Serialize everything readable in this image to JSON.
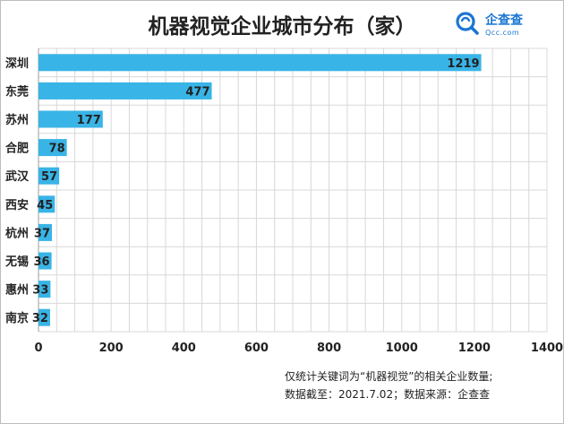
{
  "title": "机器视觉企业城市分布（家）",
  "logo": {
    "name": "企查查",
    "domain": "Qcc.com",
    "icon": "qcc-magnifier-icon"
  },
  "colors": {
    "bar": "#39b4e6",
    "grid": "#d8d8d8",
    "text": "#222222",
    "brand": "#1b76d2"
  },
  "chart_data": {
    "type": "bar",
    "orientation": "horizontal",
    "title": "机器视觉企业城市分布（家）",
    "categories": [
      "深圳",
      "东莞",
      "苏州",
      "合肥",
      "武汉",
      "西安",
      "杭州",
      "无锡",
      "惠州",
      "南京"
    ],
    "values": [
      1219,
      477,
      177,
      78,
      57,
      45,
      37,
      36,
      33,
      32
    ],
    "xlim": [
      0,
      1400
    ],
    "xticks": [
      0,
      200,
      400,
      600,
      800,
      1000,
      1200,
      1400
    ],
    "xlabel": "",
    "ylabel": "",
    "grid": true,
    "data_labels": true
  },
  "notes": {
    "line1": "仅统计关键词为“机器视觉”的相关企业数量;",
    "line2": "数据截至：2021.7.02；数据来源：企查查"
  }
}
